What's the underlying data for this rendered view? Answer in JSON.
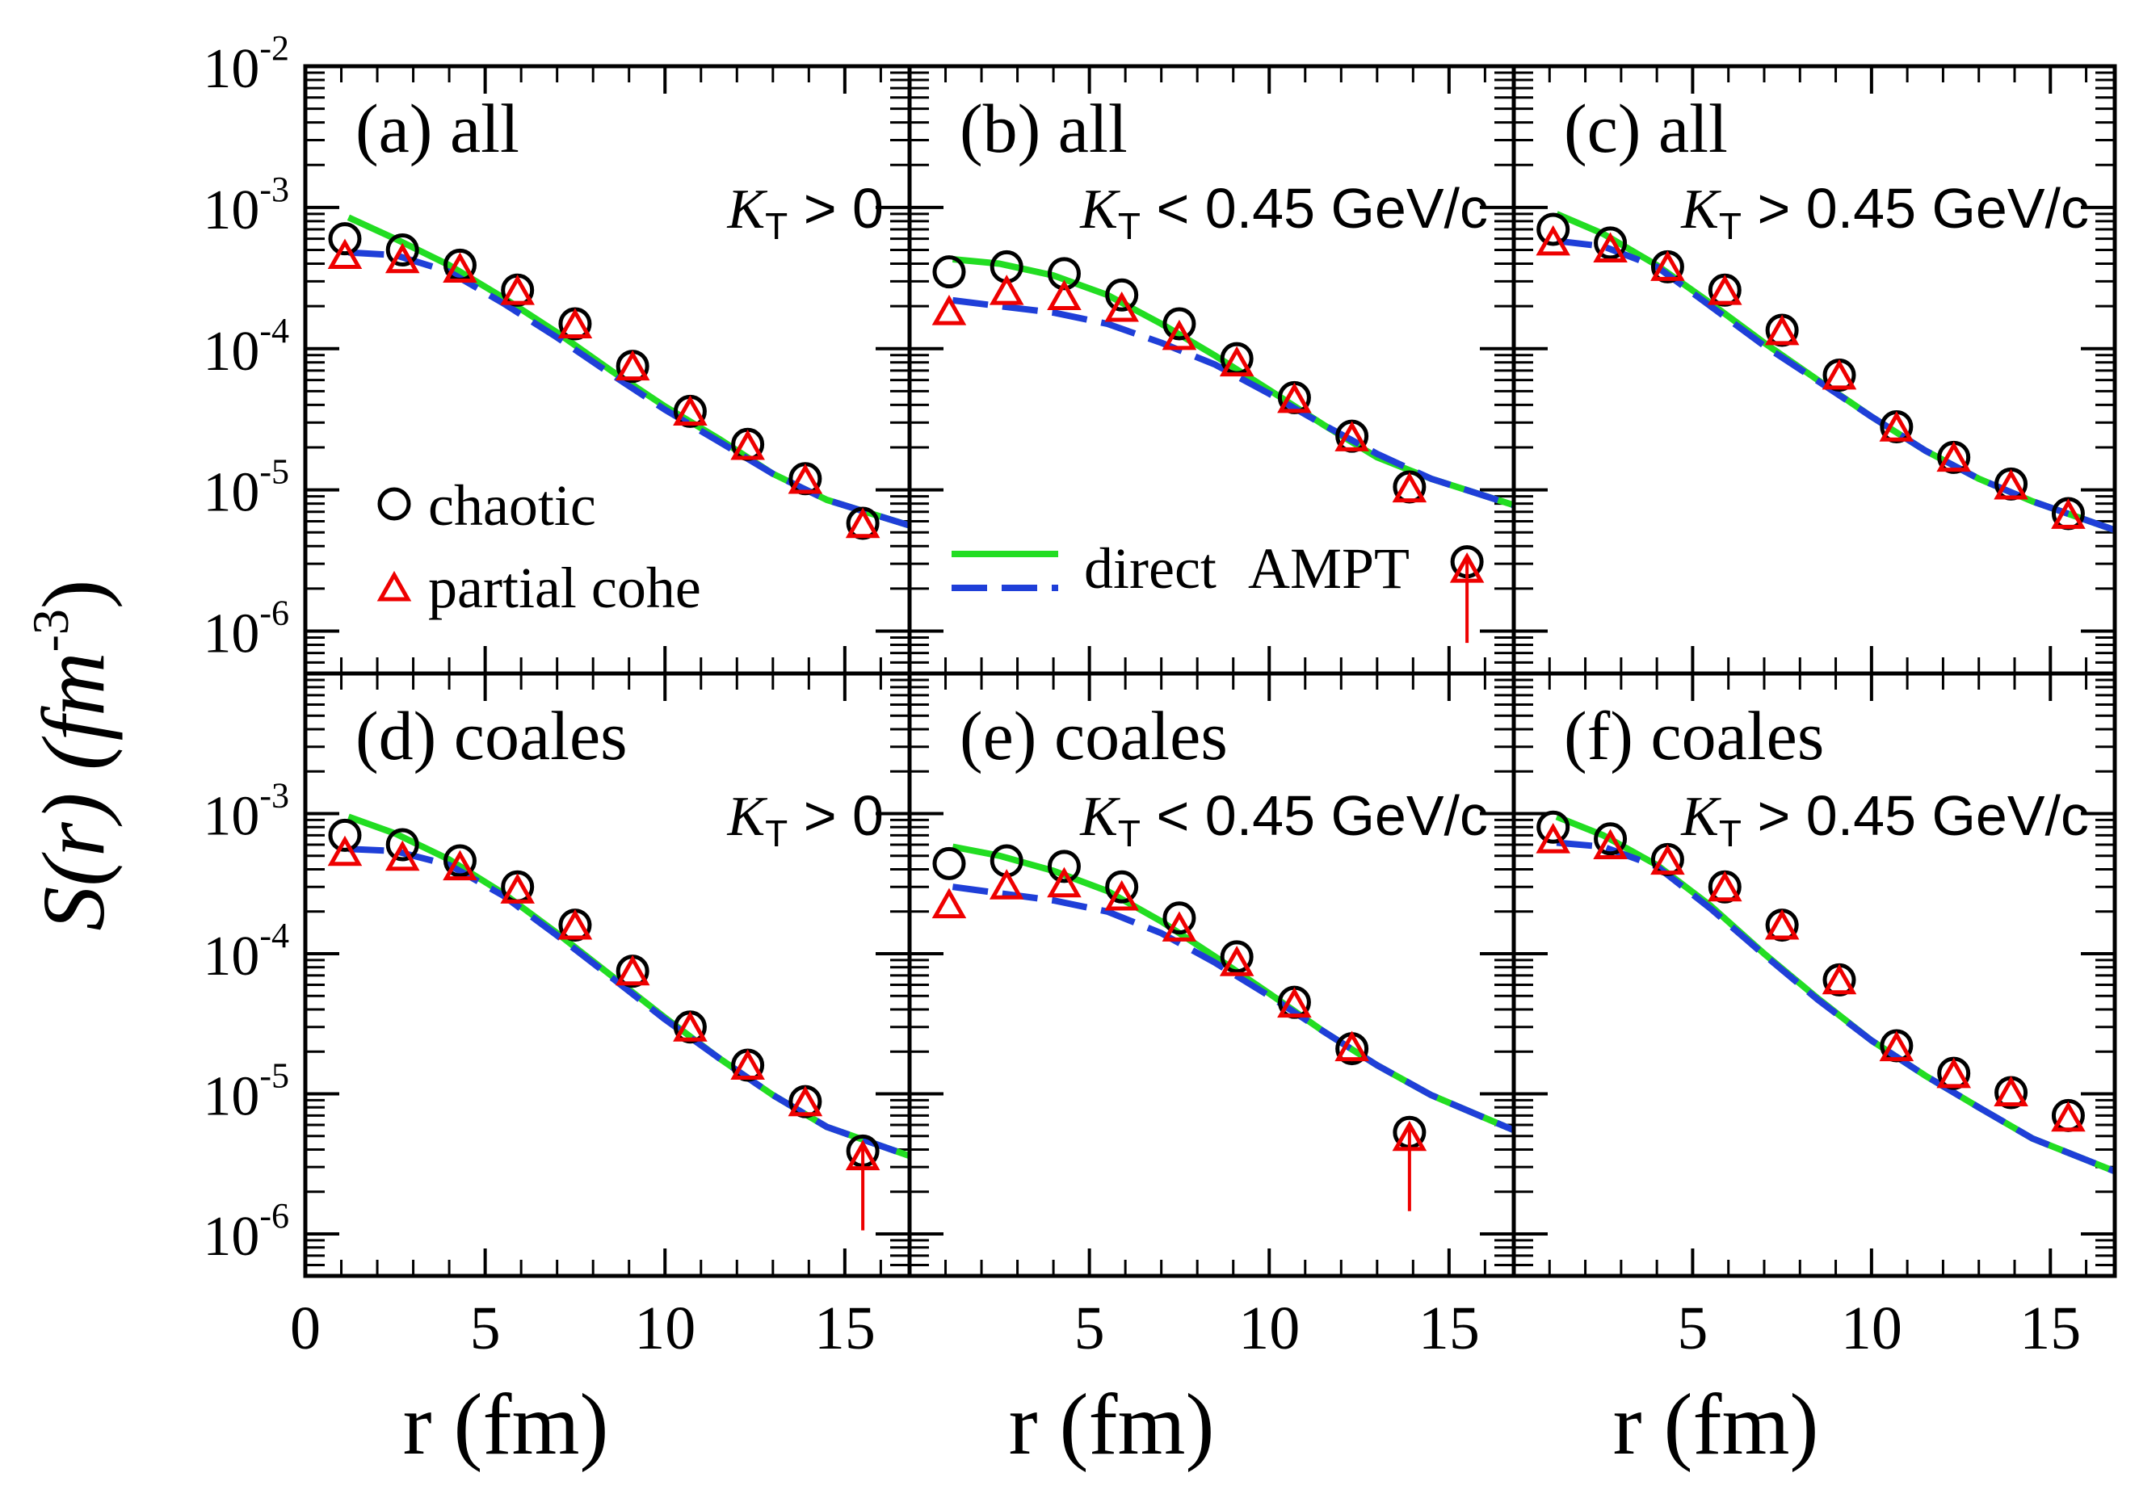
{
  "colors": {
    "chaotic": "#000000",
    "partial": "#ee0000",
    "direct": "#22dd22",
    "ampt": "#1f3fd8"
  },
  "axis_labels": {
    "y_label": "S(r) (fm",
    "y_label_exp": "-3",
    "y_label_close": ")",
    "x_label": "r (fm)"
  },
  "legend": {
    "chaotic": "chaotic",
    "partial": "partial cohe",
    "direct": "direct",
    "ampt": "AMPT"
  },
  "chart_data": [
    {
      "type": "scatter",
      "panel": "a",
      "title": "(a) all",
      "kt_label": {
        "var": "K",
        "sub": "T",
        "op": ">",
        "value": "0",
        "unit": ""
      },
      "xlabel": "r (fm)",
      "ylabel": "S(r) (fm^-3)",
      "xlim": [
        0,
        16.8
      ],
      "ylim_log10": [
        -6.3,
        -2
      ],
      "x_ticks": [
        0,
        5,
        10,
        15
      ],
      "series": [
        {
          "name": "chaotic",
          "marker": "circle",
          "x": [
            1.1,
            2.7,
            4.3,
            5.9,
            7.5,
            9.1,
            10.7,
            12.3,
            13.9,
            15.5
          ],
          "y": [
            0.0006,
            0.0005,
            0.00039,
            0.00026,
            0.00015,
            7.5e-05,
            3.6e-05,
            2.1e-05,
            1.2e-05,
            5.8e-06
          ]
        },
        {
          "name": "partial cohe",
          "marker": "triangle",
          "x": [
            1.1,
            2.7,
            4.3,
            5.9,
            7.5,
            9.1,
            10.7,
            12.3,
            13.9,
            15.5
          ],
          "y": [
            0.00045,
            0.00042,
            0.00036,
            0.00025,
            0.000145,
            7.3e-05,
            3.5e-05,
            2e-05,
            1.15e-05,
            5.6e-06
          ]
        },
        {
          "name": "direct",
          "line": "solid",
          "x": [
            1.2,
            2.5,
            4,
            5.5,
            7,
            8.5,
            10,
            11.5,
            13,
            14.5,
            16.8
          ],
          "y": [
            0.00085,
            0.0006,
            0.00039,
            0.00023,
            0.00013,
            7e-05,
            3.9e-05,
            2.3e-05,
            1.3e-05,
            8.5e-06,
            5.6e-06
          ]
        },
        {
          "name": "AMPT",
          "line": "dashed",
          "x": [
            1.2,
            2.5,
            4,
            5.5,
            7,
            8.5,
            10,
            11.5,
            13,
            14.5,
            16.8
          ],
          "y": [
            0.00048,
            0.00046,
            0.00035,
            0.00021,
            0.00012,
            6.6e-05,
            3.7e-05,
            2.2e-05,
            1.3e-05,
            8.5e-06,
            5.6e-06
          ]
        }
      ]
    },
    {
      "type": "scatter",
      "panel": "b",
      "title": "(b) all",
      "kt_label": {
        "var": "K",
        "sub": "T",
        "op": "<",
        "value": "0.45",
        "unit": "GeV/c"
      },
      "xlabel": "r (fm)",
      "ylabel": "S(r) (fm^-3)",
      "xlim": [
        0,
        16.8
      ],
      "ylim_log10": [
        -6.3,
        -2
      ],
      "x_ticks": [
        5,
        10,
        15
      ],
      "series": [
        {
          "name": "chaotic",
          "marker": "circle",
          "x": [
            1.1,
            2.7,
            4.3,
            5.9,
            7.5,
            9.1,
            10.7,
            12.3,
            13.9,
            15.5
          ],
          "y": [
            0.00035,
            0.00038,
            0.00034,
            0.00024,
            0.00015,
            8.5e-05,
            4.5e-05,
            2.4e-05,
            1.05e-05,
            3.1e-06
          ]
        },
        {
          "name": "partial cohe",
          "marker": "triangle",
          "x": [
            1.1,
            2.7,
            4.3,
            5.9,
            7.5,
            9.1,
            10.7,
            12.3,
            13.9,
            15.5
          ],
          "y": [
            0.00018,
            0.00025,
            0.00023,
            0.00019,
            0.00012,
            7.8e-05,
            4.3e-05,
            2.3e-05,
            1e-05,
            2.7e-06
          ],
          "arrow": [
            false,
            false,
            false,
            false,
            false,
            false,
            false,
            false,
            false,
            true
          ]
        },
        {
          "name": "direct",
          "line": "solid",
          "x": [
            1.2,
            2.5,
            4,
            5.5,
            7,
            8.5,
            10,
            11.5,
            13,
            14.5,
            16.8
          ],
          "y": [
            0.00043,
            0.0004,
            0.00033,
            0.00024,
            0.00015,
            8.9e-05,
            5.1e-05,
            2.9e-05,
            1.7e-05,
            1.2e-05,
            7.8e-06
          ]
        },
        {
          "name": "AMPT",
          "line": "dashed",
          "x": [
            1.2,
            2.5,
            4,
            5.5,
            7,
            8.5,
            10,
            11.5,
            13,
            14.5,
            16.8
          ],
          "y": [
            0.00022,
            0.0002,
            0.00018,
            0.00015,
            0.00011,
            7.7e-05,
            4.8e-05,
            2.9e-05,
            1.8e-05,
            1.2e-05,
            7.8e-06
          ]
        }
      ]
    },
    {
      "type": "scatter",
      "panel": "c",
      "title": "(c) all",
      "kt_label": {
        "var": "K",
        "sub": "T",
        "op": ">",
        "value": "0.45",
        "unit": "GeV/c"
      },
      "xlabel": "r (fm)",
      "ylabel": "S(r) (fm^-3)",
      "xlim": [
        0,
        16.8
      ],
      "ylim_log10": [
        -6.3,
        -2
      ],
      "x_ticks": [
        5,
        10,
        15
      ],
      "series": [
        {
          "name": "chaotic",
          "marker": "circle",
          "x": [
            1.1,
            2.7,
            4.3,
            5.9,
            7.5,
            9.1,
            10.7,
            12.3,
            13.9,
            15.5
          ],
          "y": [
            0.0007,
            0.00056,
            0.00038,
            0.00026,
            0.000135,
            6.5e-05,
            2.8e-05,
            1.7e-05,
            1.1e-05,
            6.8e-06
          ]
        },
        {
          "name": "partial cohe",
          "marker": "triangle",
          "x": [
            1.1,
            2.7,
            4.3,
            5.9,
            7.5,
            9.1,
            10.7,
            12.3,
            13.9,
            15.5
          ],
          "y": [
            0.00056,
            0.0005,
            0.00037,
            0.00025,
            0.00013,
            6.3e-05,
            2.7e-05,
            1.65e-05,
            1.05e-05,
            6.5e-06
          ]
        },
        {
          "name": "direct",
          "line": "solid",
          "x": [
            1.2,
            2.5,
            4,
            5.5,
            7,
            8.5,
            10,
            11.5,
            13,
            14.5,
            16.8
          ],
          "y": [
            0.0009,
            0.00065,
            0.00039,
            0.00021,
            0.00011,
            6e-05,
            3.3e-05,
            1.9e-05,
            1.2e-05,
            8.3e-06,
            5.2e-06
          ]
        },
        {
          "name": "AMPT",
          "line": "dashed",
          "x": [
            1.2,
            2.5,
            4,
            5.5,
            7,
            8.5,
            10,
            11.5,
            13,
            14.5,
            16.8
          ],
          "y": [
            0.00058,
            0.00053,
            0.00038,
            0.0002,
            0.000105,
            5.9e-05,
            3.3e-05,
            1.9e-05,
            1.2e-05,
            8.3e-06,
            5.2e-06
          ]
        }
      ]
    },
    {
      "type": "scatter",
      "panel": "d",
      "title": "(d) coales",
      "kt_label": {
        "var": "K",
        "sub": "T",
        "op": ">",
        "value": "0",
        "unit": ""
      },
      "xlabel": "r (fm)",
      "ylabel": "S(r) (fm^-3)",
      "xlim": [
        0,
        16.8
      ],
      "ylim_log10": [
        -6.3,
        -2
      ],
      "x_ticks": [
        0,
        5,
        10,
        15
      ],
      "series": [
        {
          "name": "chaotic",
          "marker": "circle",
          "x": [
            1.1,
            2.7,
            4.3,
            5.9,
            7.5,
            9.1,
            10.7,
            12.3,
            13.9,
            15.5
          ],
          "y": [
            0.0007,
            0.0006,
            0.00046,
            0.0003,
            0.00016,
            7.5e-05,
            3e-05,
            1.6e-05,
            8.8e-06,
            3.9e-06
          ]
        },
        {
          "name": "partial cohe",
          "marker": "triangle",
          "x": [
            1.1,
            2.7,
            4.3,
            5.9,
            7.5,
            9.1,
            10.7,
            12.3,
            13.9,
            15.5
          ],
          "y": [
            0.00052,
            0.00048,
            0.00041,
            0.00028,
            0.000155,
            7.3e-05,
            2.9e-05,
            1.55e-05,
            8.5e-06,
            3.5e-06
          ],
          "arrow": [
            false,
            false,
            false,
            false,
            false,
            false,
            false,
            false,
            false,
            true
          ]
        },
        {
          "name": "direct",
          "line": "solid",
          "x": [
            1.2,
            2.5,
            4,
            5.5,
            7,
            8.5,
            10,
            11.5,
            13,
            14.5,
            16.8
          ],
          "y": [
            0.00095,
            0.00072,
            0.00047,
            0.00027,
            0.00014,
            7e-05,
            3.5e-05,
            1.8e-05,
            9.8e-06,
            5.8e-06,
            3.6e-06
          ]
        },
        {
          "name": "AMPT",
          "line": "dashed",
          "x": [
            1.2,
            2.5,
            4,
            5.5,
            7,
            8.5,
            10,
            11.5,
            13,
            14.5,
            16.8
          ],
          "y": [
            0.00056,
            0.00054,
            0.00043,
            0.00026,
            0.000135,
            6.8e-05,
            3.4e-05,
            1.8e-05,
            9.8e-06,
            5.8e-06,
            3.6e-06
          ]
        }
      ]
    },
    {
      "type": "scatter",
      "panel": "e",
      "title": "(e) coales",
      "kt_label": {
        "var": "K",
        "sub": "T",
        "op": "<",
        "value": "0.45",
        "unit": "GeV/c"
      },
      "xlabel": "r (fm)",
      "ylabel": "S(r) (fm^-3)",
      "xlim": [
        0,
        16.8
      ],
      "ylim_log10": [
        -6.3,
        -2
      ],
      "x_ticks": [
        5,
        10,
        15
      ],
      "series": [
        {
          "name": "chaotic",
          "marker": "circle",
          "x": [
            1.1,
            2.7,
            4.3,
            5.9,
            7.5,
            9.1,
            10.7,
            12.3,
            13.9
          ],
          "y": [
            0.00044,
            0.00046,
            0.00042,
            0.0003,
            0.00018,
            9.5e-05,
            4.5e-05,
            2.1e-05,
            5.3e-06
          ]
        },
        {
          "name": "partial cohe",
          "marker": "triangle",
          "x": [
            1.1,
            2.7,
            4.3,
            5.9,
            7.5,
            9.1,
            10.7,
            12.3,
            13.9
          ],
          "y": [
            0.00022,
            0.0003,
            0.00031,
            0.00025,
            0.00015,
            8.5e-05,
            4.3e-05,
            2.1e-05,
            4.8e-06
          ],
          "arrow": [
            false,
            false,
            false,
            false,
            false,
            false,
            false,
            false,
            true
          ]
        },
        {
          "name": "direct",
          "line": "solid",
          "x": [
            1.2,
            2.5,
            4,
            5.5,
            7,
            8.5,
            10,
            11.5,
            13,
            14.5,
            16.8
          ],
          "y": [
            0.00058,
            0.0005,
            0.00039,
            0.00028,
            0.00017,
            9.5e-05,
            5.2e-05,
            2.8e-05,
            1.6e-05,
            9.8e-06,
            5.5e-06
          ]
        },
        {
          "name": "AMPT",
          "line": "dashed",
          "x": [
            1.2,
            2.5,
            4,
            5.5,
            7,
            8.5,
            10,
            11.5,
            13,
            14.5,
            16.8
          ],
          "y": [
            0.0003,
            0.00027,
            0.00024,
            0.0002,
            0.00014,
            8.6e-05,
            5e-05,
            2.8e-05,
            1.6e-05,
            9.8e-06,
            5.5e-06
          ]
        }
      ]
    },
    {
      "type": "scatter",
      "panel": "f",
      "title": "(f) coales",
      "kt_label": {
        "var": "K",
        "sub": "T",
        "op": ">",
        "value": "0.45",
        "unit": "GeV/c"
      },
      "xlabel": "r (fm)",
      "ylabel": "S(r) (fm^-3)",
      "xlim": [
        0,
        16.8
      ],
      "ylim_log10": [
        -6.3,
        -2
      ],
      "x_ticks": [
        5,
        10,
        15
      ],
      "series": [
        {
          "name": "chaotic",
          "marker": "circle",
          "x": [
            1.1,
            2.7,
            4.3,
            5.9,
            7.5,
            9.1,
            10.7,
            12.3,
            13.9,
            15.5
          ],
          "y": [
            0.0008,
            0.00066,
            0.00047,
            0.0003,
            0.00016,
            6.5e-05,
            2.2e-05,
            1.4e-05,
            1.02e-05,
            7e-06
          ]
        },
        {
          "name": "partial cohe",
          "marker": "triangle",
          "x": [
            1.1,
            2.7,
            4.3,
            5.9,
            7.5,
            9.1,
            10.7,
            12.3,
            13.9,
            15.5
          ],
          "y": [
            0.00064,
            0.00058,
            0.00045,
            0.00029,
            0.000155,
            6.3e-05,
            2.1e-05,
            1.35e-05,
            1e-05,
            6.6e-06
          ]
        },
        {
          "name": "direct",
          "line": "solid",
          "x": [
            1.2,
            2.5,
            4,
            5.5,
            7,
            8.5,
            10,
            11.5,
            13,
            14.5,
            16.8
          ],
          "y": [
            0.00095,
            0.0007,
            0.00043,
            0.00022,
            0.0001,
            4.8e-05,
            2.4e-05,
            1.35e-05,
            8e-06,
            4.8e-06,
            2.8e-06
          ]
        },
        {
          "name": "AMPT",
          "line": "dashed",
          "x": [
            1.2,
            2.5,
            4,
            5.5,
            7,
            8.5,
            10,
            11.5,
            13,
            14.5,
            16.8
          ],
          "y": [
            0.00062,
            0.00058,
            0.00042,
            0.00021,
            9.8e-05,
            4.7e-05,
            2.4e-05,
            1.35e-05,
            8e-06,
            4.8e-06,
            2.8e-06
          ]
        }
      ]
    }
  ]
}
